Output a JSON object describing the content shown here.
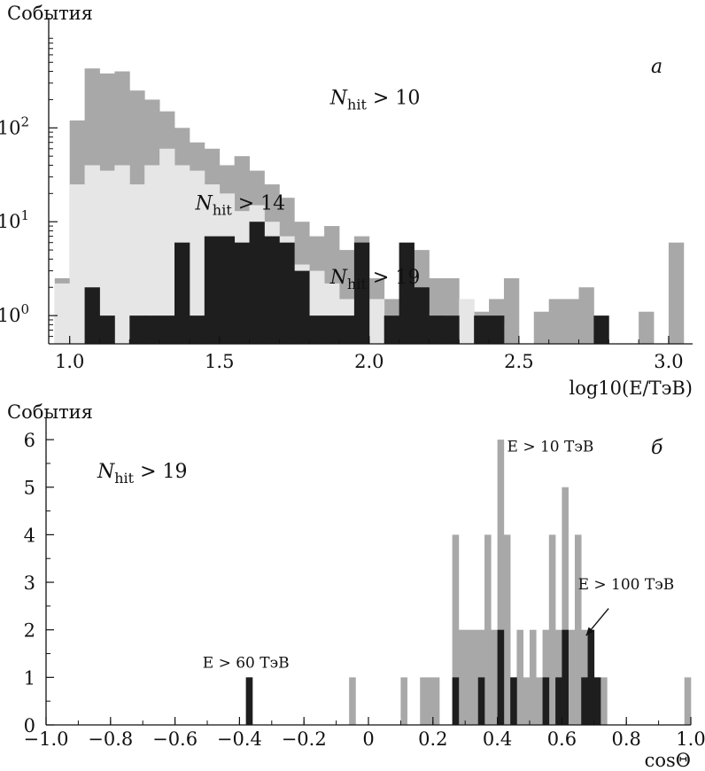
{
  "chart_data": [
    {
      "type": "bar",
      "panel": "а",
      "ylabel": "События",
      "xlabel": "log10(E/ТэВ)",
      "yscale": "log",
      "xlim": [
        0.93,
        3.08
      ],
      "ylim": [
        0.5,
        1200
      ],
      "xticks": [
        {
          "v": 1.0,
          "label": "1.0"
        },
        {
          "v": 1.5,
          "label": "1.5"
        },
        {
          "v": 2.0,
          "label": "2.0"
        },
        {
          "v": 2.5,
          "label": "2.5"
        },
        {
          "v": 3.0,
          "label": "3.0"
        }
      ],
      "yticks": [
        {
          "v": 1,
          "base": "10",
          "exp": "0"
        },
        {
          "v": 10,
          "base": "10",
          "exp": "1"
        },
        {
          "v": 100,
          "base": "10",
          "exp": "2"
        }
      ],
      "bin_start": 0.95,
      "bin_width": 0.05,
      "series": [
        {
          "name": "N_hit > 10",
          "color": "#a8a8a8",
          "values": [
            2.5,
            120,
            430,
            380,
            400,
            250,
            200,
            150,
            100,
            70,
            60,
            40,
            50,
            35,
            25,
            18,
            10,
            7,
            9,
            5,
            7,
            2.5,
            1.5,
            2.5,
            5,
            2.5,
            2.5,
            1.5,
            1.1,
            1.5,
            2.5,
            0,
            1.1,
            1.5,
            1.5,
            2,
            0,
            0,
            0,
            1.1,
            0,
            6
          ]
        },
        {
          "name": "N_hit > 14",
          "color": "#e6e6e6",
          "values": [
            2.2,
            25,
            40,
            35,
            40,
            25,
            40,
            60,
            40,
            35,
            25,
            20,
            13,
            15,
            10,
            7,
            3.5,
            3,
            2.2,
            1.5,
            1.3,
            1.5,
            1,
            0.9,
            1.1,
            0.8,
            1,
            1.5,
            0.9,
            0.8,
            0,
            0,
            0,
            0,
            0,
            0,
            0,
            0,
            0,
            0,
            0,
            0
          ]
        },
        {
          "name": "N_hit > 19",
          "color": "#1e1e1e",
          "values": [
            0,
            0,
            2,
            1,
            0,
            1,
            1,
            1,
            6,
            1,
            7,
            7,
            6,
            10,
            7,
            6,
            3,
            1,
            1,
            1,
            6,
            0,
            1,
            6,
            2,
            1,
            1,
            0,
            1,
            1,
            0,
            0,
            0,
            0,
            0,
            0,
            1,
            0,
            0,
            0,
            0,
            0
          ]
        }
      ],
      "annotations": [
        {
          "base": "N",
          "sub": "hit",
          "rest": " > 10",
          "x": 2.02,
          "y": 180
        },
        {
          "base": "N",
          "sub": "hit",
          "rest": " > 14",
          "x": 1.57,
          "y": 13.5
        },
        {
          "base": "N",
          "sub": "hit",
          "rest": " > 19",
          "x": 2.02,
          "y": 2.2
        }
      ],
      "letter": "а"
    },
    {
      "type": "bar",
      "panel": "б",
      "ylabel": "События",
      "xlabel": "cosΘ",
      "xlim": [
        -1.0,
        1.0
      ],
      "ylim": [
        0,
        6.3
      ],
      "xticks": [
        {
          "v": -1.0,
          "label": "−1.0"
        },
        {
          "v": -0.8,
          "label": "−0.8"
        },
        {
          "v": -0.6,
          "label": "−0.6"
        },
        {
          "v": -0.4,
          "label": "−0.4"
        },
        {
          "v": -0.2,
          "label": "−0.2"
        },
        {
          "v": 0,
          "label": "0"
        },
        {
          "v": 0.2,
          "label": "0.2"
        },
        {
          "v": 0.4,
          "label": "0.4"
        },
        {
          "v": 0.6,
          "label": "0.6"
        },
        {
          "v": 0.8,
          "label": "0.8"
        },
        {
          "v": 1.0,
          "label": "1.0"
        }
      ],
      "yticks": [
        {
          "v": 0,
          "label": "0"
        },
        {
          "v": 1,
          "label": "1"
        },
        {
          "v": 2,
          "label": "2"
        },
        {
          "v": 3,
          "label": "3"
        },
        {
          "v": 4,
          "label": "4"
        },
        {
          "v": 5,
          "label": "5"
        },
        {
          "v": 6,
          "label": "6"
        }
      ],
      "bin_width": 0.02,
      "series": [
        {
          "name": "E > 10 ТэВ",
          "color": "#a8a8a8",
          "bins": [
            [
              -0.38,
              1
            ],
            [
              -0.06,
              1
            ],
            [
              0.1,
              1
            ],
            [
              0.16,
              1
            ],
            [
              0.18,
              1
            ],
            [
              0.2,
              1
            ],
            [
              0.26,
              4
            ],
            [
              0.28,
              2
            ],
            [
              0.3,
              2
            ],
            [
              0.32,
              2
            ],
            [
              0.34,
              2
            ],
            [
              0.36,
              4
            ],
            [
              0.38,
              2
            ],
            [
              0.4,
              6
            ],
            [
              0.42,
              4
            ],
            [
              0.44,
              1
            ],
            [
              0.46,
              2
            ],
            [
              0.48,
              1
            ],
            [
              0.5,
              2
            ],
            [
              0.52,
              1
            ],
            [
              0.54,
              2
            ],
            [
              0.56,
              4
            ],
            [
              0.58,
              2
            ],
            [
              0.6,
              5
            ],
            [
              0.62,
              2
            ],
            [
              0.64,
              4
            ],
            [
              0.66,
              2
            ],
            [
              0.68,
              2
            ],
            [
              0.7,
              1
            ],
            [
              0.72,
              1
            ],
            [
              0.98,
              1
            ]
          ]
        },
        {
          "name": "E > 100 ТэВ",
          "color": "#1e1e1e",
          "bins": [
            [
              -0.38,
              1
            ],
            [
              0.26,
              1
            ],
            [
              0.34,
              1
            ],
            [
              0.4,
              2
            ],
            [
              0.44,
              1
            ],
            [
              0.54,
              1
            ],
            [
              0.58,
              1
            ],
            [
              0.6,
              2
            ],
            [
              0.66,
              1
            ],
            [
              0.68,
              2
            ],
            [
              0.7,
              1
            ]
          ]
        }
      ],
      "annotations": [
        {
          "text": "E > 10 ТэВ",
          "x": 0.43,
          "y": 5.75,
          "anchor": "start"
        },
        {
          "text": "E > 100 ТэВ",
          "x": 0.65,
          "y": 2.85,
          "anchor": "start"
        },
        {
          "text": "E > 60 ТэВ",
          "x": -0.38,
          "y": 1.2,
          "anchor": "middle"
        }
      ],
      "nhit": {
        "base": "N",
        "sub": "hit",
        "rest": " > 19"
      },
      "letter": "б"
    }
  ]
}
